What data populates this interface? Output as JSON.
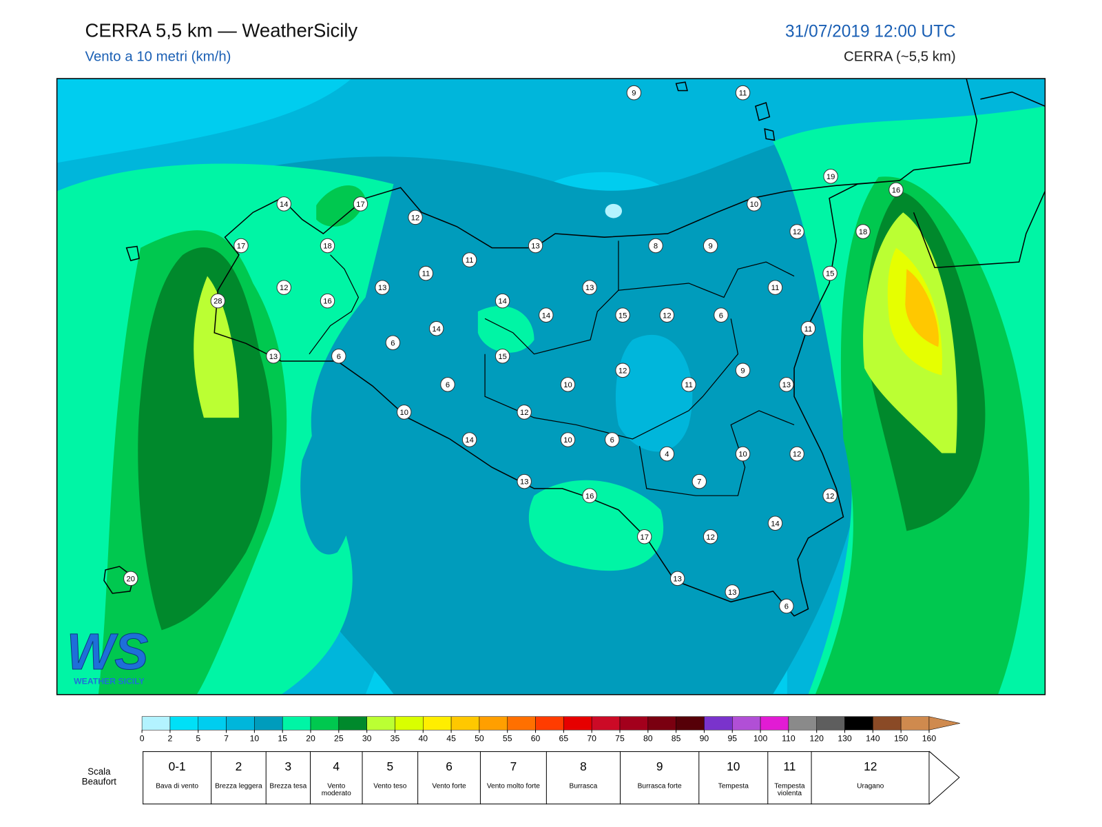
{
  "header": {
    "title": "CERRA 5,5 km — WeatherSicily",
    "subtitle": "Vento a 10 metri (km/h)",
    "datetime": "31/07/2019 12:00 UTC",
    "model": "CERRA (~5,5 km)"
  },
  "stations": [
    9,
    11,
    19,
    16,
    14,
    17,
    10,
    12,
    12,
    18,
    17,
    18,
    13,
    8,
    9,
    11,
    11,
    15,
    12,
    13,
    13,
    11,
    28,
    16,
    14,
    14,
    15,
    12,
    6,
    14,
    11,
    6,
    13,
    6,
    15,
    12,
    9,
    6,
    10,
    11,
    13,
    10,
    12,
    14,
    10,
    6,
    4,
    10,
    12,
    7,
    13,
    16,
    12,
    14,
    17,
    12,
    20,
    13,
    13,
    6
  ],
  "logo": {
    "mark": "WS",
    "text": "WEATHER SICILY"
  },
  "colorbar": {
    "ticks": [
      0,
      2,
      5,
      7,
      10,
      15,
      20,
      25,
      30,
      35,
      40,
      45,
      50,
      55,
      60,
      65,
      70,
      75,
      80,
      85,
      90,
      95,
      100,
      110,
      120,
      130,
      140,
      150,
      160
    ],
    "colors": [
      "#b3f3ff",
      "#00e0f7",
      "#00cdef",
      "#00b6db",
      "#009cbc",
      "#00f5a5",
      "#00c84f",
      "#00892c",
      "#bbff33",
      "#d9ff00",
      "#ffee00",
      "#ffc800",
      "#ff9f00",
      "#ff7000",
      "#ff3c00",
      "#e60000",
      "#cc0a26",
      "#a3001c",
      "#7a0010",
      "#560008",
      "#7a33cc",
      "#b14fd6",
      "#e21bd4",
      "#8a8a8a",
      "#5e5e5e",
      "#000000",
      "#8a4a26",
      "#cf8a4e",
      "#cf8a4e"
    ]
  },
  "beaufort": {
    "title": "Scala Beaufort",
    "levels": [
      {
        "force": "0-1",
        "label": "Bava di vento"
      },
      {
        "force": 2,
        "label": "Brezza leggera"
      },
      {
        "force": 3,
        "label": "Brezza tesa"
      },
      {
        "force": 4,
        "label": "Vento moderato"
      },
      {
        "force": 5,
        "label": "Vento teso"
      },
      {
        "force": 6,
        "label": "Vento forte"
      },
      {
        "force": 7,
        "label": "Vento molto forte"
      },
      {
        "force": 8,
        "label": "Burrasca"
      },
      {
        "force": 9,
        "label": "Burrasca forte"
      },
      {
        "force": 10,
        "label": "Tempesta"
      },
      {
        "force": 11,
        "label": "Tempesta violenta"
      },
      {
        "force": 12,
        "label": "Uragano"
      }
    ]
  }
}
